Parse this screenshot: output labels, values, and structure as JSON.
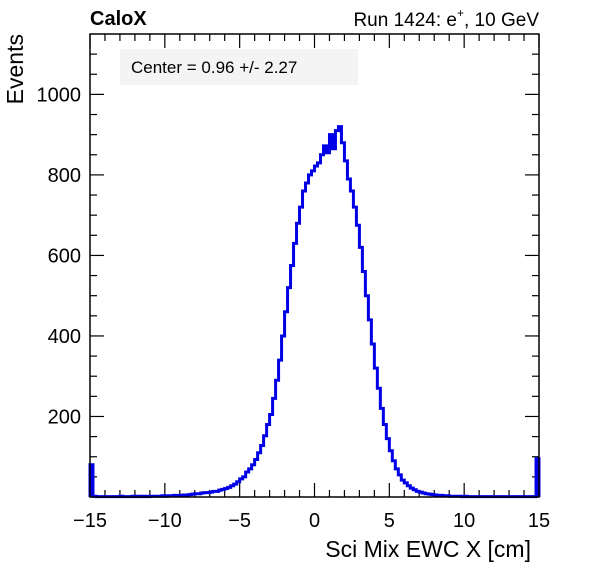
{
  "header": {
    "left_label": "CaloX",
    "right_prefix": "Run 1424: e",
    "right_sup": "+",
    "right_suffix": ", 10 GeV"
  },
  "annotation": "Center = 0.96 +/- 2.27",
  "colors": {
    "series": "#0000e6",
    "axis": "#000000",
    "annotation_box": "#f4f4f4"
  },
  "chart_data": {
    "type": "histogram",
    "xlabel": "Sci Mix EWC X [cm]",
    "ylabel": "Events",
    "xlim": [
      -15,
      15
    ],
    "ylim": [
      0,
      1150
    ],
    "xticks": [
      -15,
      -10,
      -5,
      0,
      5,
      10,
      15
    ],
    "xtick_labels": [
      "−15",
      "−10",
      "−5",
      "0",
      "5",
      "10",
      "15"
    ],
    "yticks": [
      200,
      400,
      600,
      800,
      1000
    ],
    "ytick_labels": [
      "200",
      "400",
      "600",
      "800",
      "1000"
    ],
    "grid": false,
    "legend": "none",
    "bin_width": 0.2,
    "series": [
      {
        "x": [
          -15.0,
          -14.8,
          -14.6,
          -14.4,
          -14.2,
          -14.0,
          -13.8,
          -13.6,
          -13.4,
          -13.2,
          -13.0,
          -12.8,
          -12.6,
          -12.4,
          -12.2,
          -12.0,
          -11.8,
          -11.6,
          -11.4,
          -11.2,
          -11.0,
          -10.8,
          -10.6,
          -10.4,
          -10.2,
          -10.0,
          -9.8,
          -9.6,
          -9.4,
          -9.2,
          -9.0,
          -8.8,
          -8.6,
          -8.4,
          -8.2,
          -8.0,
          -7.8,
          -7.6,
          -7.4,
          -7.2,
          -7.0,
          -6.8,
          -6.6,
          -6.4,
          -6.2,
          -6.0,
          -5.8,
          -5.6,
          -5.4,
          -5.2,
          -5.0,
          -4.8,
          -4.6,
          -4.4,
          -4.2,
          -4.0,
          -3.8,
          -3.6,
          -3.4,
          -3.2,
          -3.0,
          -2.8,
          -2.6,
          -2.4,
          -2.2,
          -2.0,
          -1.8,
          -1.6,
          -1.4,
          -1.2,
          -1.0,
          -0.8,
          -0.6,
          -0.4,
          -0.2,
          0.0,
          0.2,
          0.4,
          0.6,
          0.8,
          1.0,
          1.2,
          1.4,
          1.6,
          1.8,
          2.0,
          2.2,
          2.4,
          2.6,
          2.8,
          3.0,
          3.2,
          3.4,
          3.6,
          3.8,
          4.0,
          4.2,
          4.4,
          4.6,
          4.8,
          5.0,
          5.2,
          5.4,
          5.6,
          5.8,
          6.0,
          6.2,
          6.4,
          6.6,
          6.8,
          7.0,
          7.2,
          7.4,
          7.6,
          7.8,
          8.0,
          8.2,
          8.4,
          8.6,
          8.8,
          9.0,
          9.2,
          9.4,
          9.6,
          9.8,
          10.0,
          10.2,
          10.4,
          10.6,
          10.8,
          11.0,
          11.2,
          11.4,
          11.6,
          11.8,
          12.0,
          12.2,
          12.4,
          12.6,
          12.8,
          13.0,
          13.2,
          13.4,
          13.6,
          13.8,
          14.0,
          14.2,
          14.4,
          14.6,
          14.8
        ],
        "values": [
          80,
          2,
          1,
          1,
          1,
          1,
          1,
          1,
          1,
          1,
          2,
          1,
          1,
          1,
          2,
          1,
          2,
          1,
          2,
          1,
          2,
          2,
          2,
          2,
          3,
          2,
          3,
          3,
          4,
          3,
          4,
          5,
          5,
          6,
          7,
          8,
          8,
          10,
          11,
          11,
          12,
          14,
          14,
          17,
          19,
          21,
          24,
          28,
          32,
          38,
          45,
          50,
          62,
          70,
          80,
          93,
          110,
          128,
          152,
          180,
          205,
          245,
          290,
          340,
          400,
          460,
          520,
          575,
          630,
          680,
          720,
          760,
          780,
          800,
          810,
          822,
          830,
          850,
          872,
          855,
          900,
          865,
          910,
          920,
          880,
          835,
          790,
          760,
          720,
          675,
          620,
          560,
          500,
          440,
          380,
          320,
          270,
          220,
          180,
          145,
          115,
          90,
          70,
          55,
          42,
          35,
          28,
          22,
          18,
          14,
          12,
          10,
          8,
          7,
          6,
          5,
          4,
          4,
          3,
          3,
          2,
          2,
          2,
          2,
          1,
          2,
          1,
          1,
          1,
          1,
          1,
          1,
          1,
          1,
          1,
          1,
          1,
          1,
          1,
          1,
          1,
          1,
          1,
          1,
          1,
          1,
          1,
          1,
          1,
          95
        ]
      }
    ]
  }
}
